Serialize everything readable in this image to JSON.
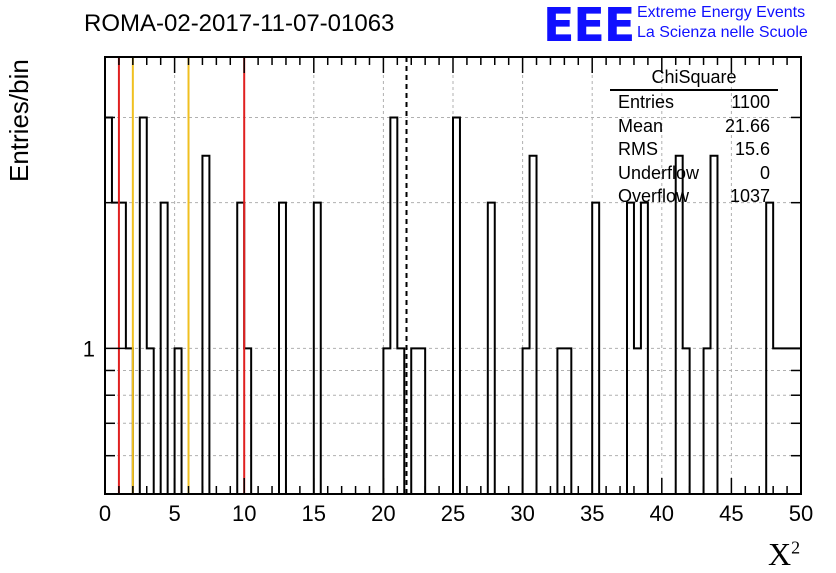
{
  "title": "ROMA-02-2017-11-07-01063",
  "logo": {
    "text": "EEE",
    "line1": "Extreme Energy Events",
    "line2": "La Scienza nelle Scuole",
    "color": "#1010ff"
  },
  "axes": {
    "xlabel": "X",
    "xlabel_sup": "2",
    "ylabel": "Entries/bin"
  },
  "stats": {
    "title": "ChiSquare",
    "rows": [
      {
        "label": "Entries",
        "value": "1100"
      },
      {
        "label": "Mean",
        "value": "21.66"
      },
      {
        "label": "RMS",
        "value": "15.6"
      },
      {
        "label": "Underflow",
        "value": "0"
      },
      {
        "label": "Overflow",
        "value": "1037"
      }
    ]
  },
  "chart_data": {
    "type": "histogram",
    "x_range": [
      0,
      50
    ],
    "y_scale": "log",
    "y_range": [
      0.5,
      4.0
    ],
    "bin_width": 0.5,
    "x_ticks": [
      0,
      5,
      10,
      15,
      20,
      25,
      30,
      35,
      40,
      45,
      50
    ],
    "y_tick_labels": [
      {
        "value": 1,
        "label": "1"
      }
    ],
    "bins": [
      [
        0,
        3
      ],
      [
        0.5,
        2
      ],
      [
        1,
        2
      ],
      [
        1.5,
        1
      ],
      [
        2,
        0
      ],
      [
        2.5,
        3
      ],
      [
        3,
        1
      ],
      [
        3.5,
        0
      ],
      [
        4,
        2
      ],
      [
        4.5,
        0
      ],
      [
        5,
        1
      ],
      [
        5.5,
        0
      ],
      [
        6,
        0
      ],
      [
        6.5,
        0
      ],
      [
        7,
        2.5
      ],
      [
        7.5,
        0
      ],
      [
        8,
        0
      ],
      [
        8.5,
        0
      ],
      [
        9,
        0
      ],
      [
        9.5,
        2
      ],
      [
        10,
        1
      ],
      [
        10.5,
        0
      ],
      [
        11,
        0
      ],
      [
        11.5,
        0
      ],
      [
        12,
        0
      ],
      [
        12.5,
        2
      ],
      [
        13,
        0
      ],
      [
        13.5,
        0
      ],
      [
        14,
        0
      ],
      [
        14.5,
        0
      ],
      [
        15,
        2
      ],
      [
        15.5,
        0
      ],
      [
        16,
        0
      ],
      [
        16.5,
        0
      ],
      [
        17,
        0
      ],
      [
        17.5,
        0
      ],
      [
        18,
        0
      ],
      [
        18.5,
        0
      ],
      [
        19,
        0
      ],
      [
        19.5,
        0
      ],
      [
        20,
        1
      ],
      [
        20.5,
        3
      ],
      [
        21,
        1
      ],
      [
        21.5,
        0
      ],
      [
        22,
        1
      ],
      [
        22.5,
        1
      ],
      [
        23,
        0
      ],
      [
        23.5,
        0
      ],
      [
        24,
        0
      ],
      [
        24.5,
        0
      ],
      [
        25,
        3
      ],
      [
        25.5,
        0
      ],
      [
        26,
        0
      ],
      [
        26.5,
        0
      ],
      [
        27,
        0
      ],
      [
        27.5,
        2
      ],
      [
        28,
        0
      ],
      [
        28.5,
        0
      ],
      [
        29,
        0
      ],
      [
        29.5,
        0
      ],
      [
        30,
        1
      ],
      [
        30.5,
        2.5
      ],
      [
        31,
        0
      ],
      [
        31.5,
        0
      ],
      [
        32,
        0
      ],
      [
        32.5,
        1
      ],
      [
        33,
        1
      ],
      [
        33.5,
        0
      ],
      [
        34,
        0
      ],
      [
        34.5,
        0
      ],
      [
        35,
        2
      ],
      [
        35.5,
        0
      ],
      [
        36,
        0
      ],
      [
        36.5,
        0
      ],
      [
        37,
        0
      ],
      [
        37.5,
        2
      ],
      [
        38,
        1
      ],
      [
        38.5,
        2
      ],
      [
        39,
        0
      ],
      [
        39.5,
        0
      ],
      [
        40,
        0
      ],
      [
        40.5,
        0
      ],
      [
        41,
        2.5
      ],
      [
        41.5,
        1
      ],
      [
        42,
        0
      ],
      [
        42.5,
        0
      ],
      [
        43,
        1
      ],
      [
        43.5,
        2.5
      ],
      [
        44,
        0
      ],
      [
        44.5,
        0
      ],
      [
        45,
        0
      ],
      [
        45.5,
        0
      ],
      [
        46,
        0
      ],
      [
        46.5,
        0
      ],
      [
        47,
        0
      ],
      [
        47.5,
        2
      ],
      [
        48,
        1
      ],
      [
        48.5,
        1
      ],
      [
        49,
        1
      ],
      [
        49.5,
        1
      ]
    ],
    "reference_lines": [
      {
        "x": 1.0,
        "color": "#e02020",
        "style": "solid"
      },
      {
        "x": 2.0,
        "color": "#f0c020",
        "style": "solid"
      },
      {
        "x": 6.0,
        "color": "#f0c020",
        "style": "solid"
      },
      {
        "x": 10.0,
        "color": "#e02020",
        "style": "solid"
      },
      {
        "x": 21.66,
        "color": "#000000",
        "style": "dashed"
      }
    ],
    "grid": true
  }
}
